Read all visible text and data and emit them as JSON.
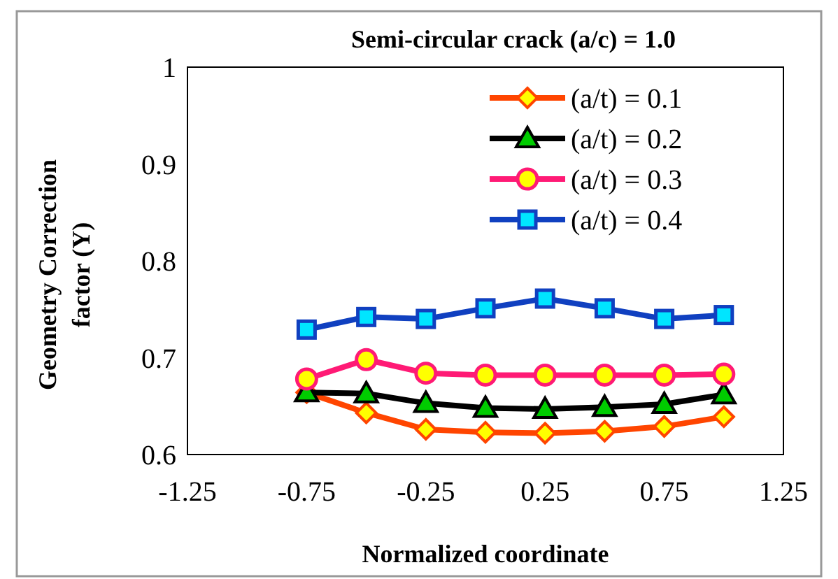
{
  "chart_data": {
    "type": "line",
    "title": "Semi-circular crack (a/c) = 1.0",
    "xlabel": "Normalized coordinate",
    "ylabel": "Geometry Correction factor (Y)",
    "x": [
      -0.75,
      -0.5,
      -0.25,
      0,
      0.25,
      0.5,
      0.75,
      1.0
    ],
    "xlim": [
      -1.25,
      1.25
    ],
    "xticks": [
      -1.25,
      -0.75,
      -0.25,
      0.25,
      0.75,
      1.25
    ],
    "ylim": [
      0.6,
      1
    ],
    "yticks": [
      {
        "value": 0.6,
        "label": "0.6"
      },
      {
        "value": 0.7,
        "label": "0.7"
      },
      {
        "value": 0.8,
        "label": "0.8"
      },
      {
        "value": 0.9,
        "label": "0.9"
      },
      {
        "value": 1,
        "label": "1"
      }
    ],
    "grid": false,
    "legend": "top right",
    "series": [
      {
        "name": "(a/t) = 0.1",
        "color": "#ff4500",
        "marker": "diamond",
        "values": [
          0.664,
          0.643,
          0.626,
          0.623,
          0.622,
          0.624,
          0.629,
          0.639
        ]
      },
      {
        "name": "(a/t) = 0.2",
        "color": "#000000",
        "marker": "triangle",
        "values": [
          0.664,
          0.663,
          0.653,
          0.648,
          0.647,
          0.649,
          0.652,
          0.662
        ]
      },
      {
        "name": "(a/t) = 0.3",
        "color": "#ff1a75",
        "marker": "circle",
        "values": [
          0.678,
          0.698,
          0.684,
          0.682,
          0.682,
          0.682,
          0.682,
          0.683
        ]
      },
      {
        "name": "(a/t) = 0.4",
        "color": "#1040c0",
        "marker": "square",
        "values": [
          0.729,
          0.742,
          0.74,
          0.751,
          0.761,
          0.751,
          0.74,
          0.744
        ]
      }
    ]
  }
}
